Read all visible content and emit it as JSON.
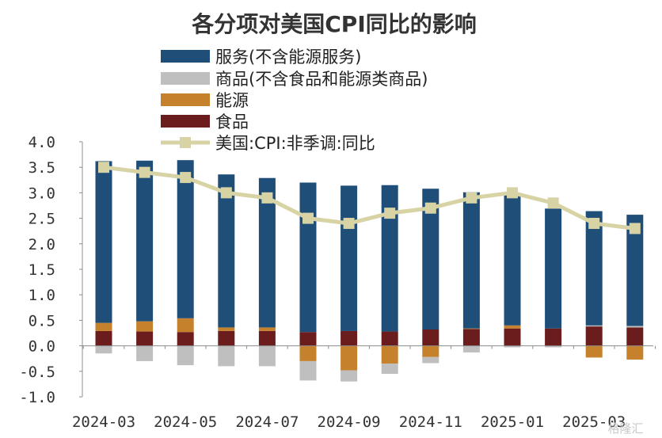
{
  "chart_data": {
    "type": "bar",
    "title": "各分项对美国CPI同比的影响",
    "categories": [
      "2024-03",
      "2024-04",
      "2024-05",
      "2024-06",
      "2024-07",
      "2024-08",
      "2024-09",
      "2024-10",
      "2024-11",
      "2024-12",
      "2025-01",
      "2025-02",
      "2025-03",
      "2025-04"
    ],
    "x_tick_labels": [
      "2024-03",
      "2024-05",
      "2024-07",
      "2024-09",
      "2024-11",
      "2025-01",
      "2025-03"
    ],
    "y_tick_labels": [
      "4.0",
      "3.5",
      "3.0",
      "2.5",
      "2.0",
      "1.5",
      "1.0",
      "0.5",
      "0.0",
      "-0.5",
      "-1.0"
    ],
    "ylim": [
      -1.0,
      4.0
    ],
    "stacked": true,
    "grid": false,
    "legend_position": "top",
    "series": [
      {
        "name": "服务(不含能源服务)",
        "kind": "bar",
        "color": "#1f4e79",
        "values": [
          3.17,
          3.15,
          3.1,
          3.0,
          2.93,
          2.93,
          2.85,
          2.87,
          2.76,
          2.67,
          2.6,
          2.35,
          2.24,
          2.18
        ]
      },
      {
        "name": "商品(不含食品和能源类商品)",
        "kind": "bar",
        "color": "#bfbfbf",
        "values": [
          -0.15,
          -0.3,
          -0.38,
          -0.4,
          -0.4,
          -0.38,
          -0.22,
          -0.2,
          -0.12,
          -0.13,
          -0.03,
          -0.03,
          0.02,
          0.03
        ]
      },
      {
        "name": "能源",
        "kind": "bar",
        "color": "#c5812b",
        "values": [
          0.16,
          0.2,
          0.27,
          0.07,
          0.07,
          -0.3,
          -0.48,
          -0.35,
          -0.22,
          0.01,
          0.06,
          0.0,
          -0.23,
          -0.27
        ]
      },
      {
        "name": "食品",
        "kind": "bar",
        "color": "#6b1d1d",
        "values": [
          0.29,
          0.28,
          0.27,
          0.29,
          0.29,
          0.27,
          0.29,
          0.28,
          0.32,
          0.33,
          0.34,
          0.34,
          0.38,
          0.36
        ]
      },
      {
        "name": "美国:CPI:非季调:同比",
        "kind": "line",
        "color": "#d8d3a4",
        "values": [
          3.5,
          3.4,
          3.3,
          3.0,
          2.9,
          2.5,
          2.4,
          2.6,
          2.7,
          2.9,
          3.0,
          2.8,
          2.4,
          2.3
        ]
      }
    ]
  },
  "watermark": "格隆汇"
}
